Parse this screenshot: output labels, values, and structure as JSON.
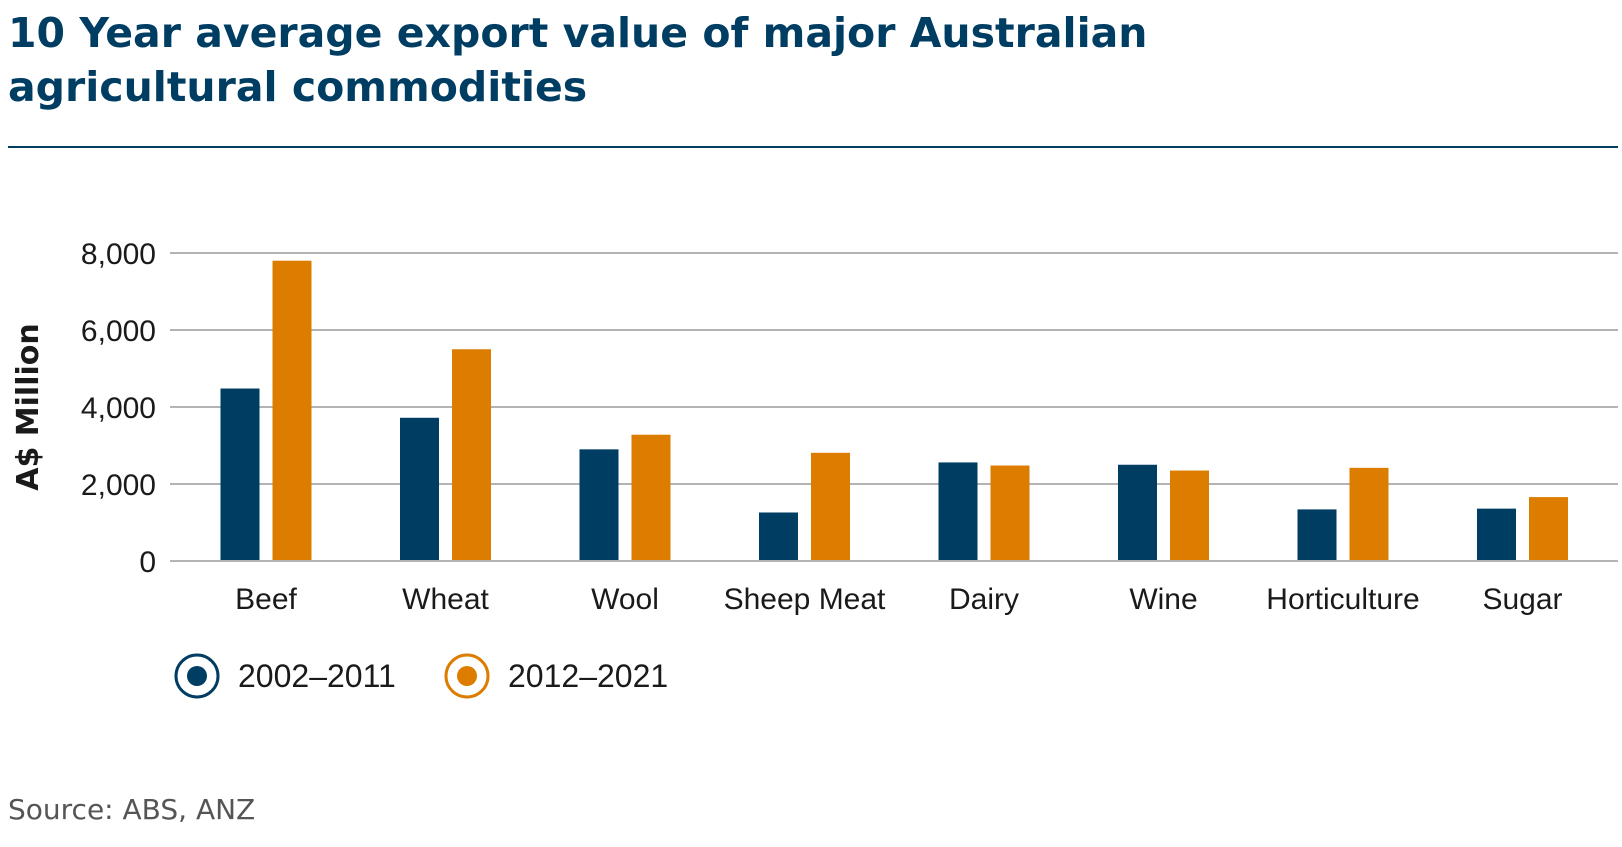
{
  "title": "10 Year average export value of major Australian agricultural commodities",
  "source": "Source: ABS, ANZ",
  "colors": {
    "title": "#003d63",
    "series_2002_2011": "#003d63",
    "series_2012_2021": "#dd7d00",
    "grid": "#b3b3b3"
  },
  "chart_data": {
    "type": "bar",
    "title": "10 Year average export value of major Australian agricultural commodities",
    "xlabel": "",
    "ylabel": "A$ Million",
    "ylim": [
      0,
      8000
    ],
    "yticks": [
      0,
      2000,
      4000,
      6000,
      8000
    ],
    "ytick_labels": [
      "0",
      "2,000",
      "4,000",
      "6,000",
      "8,000"
    ],
    "grid": true,
    "legend": "bottom-left",
    "categories": [
      "Beef",
      "Wheat",
      "Wool",
      "Sheep Meat",
      "Dairy",
      "Wine",
      "Horticulture",
      "Sugar"
    ],
    "series": [
      {
        "name": "2002–2011",
        "color": "#003d63",
        "values": [
          4480,
          3720,
          2900,
          1260,
          2560,
          2500,
          1340,
          1360
        ]
      },
      {
        "name": "2012–2021",
        "color": "#dd7d00",
        "values": [
          7800,
          5500,
          3280,
          2810,
          2480,
          2350,
          2420,
          1660
        ]
      }
    ]
  }
}
